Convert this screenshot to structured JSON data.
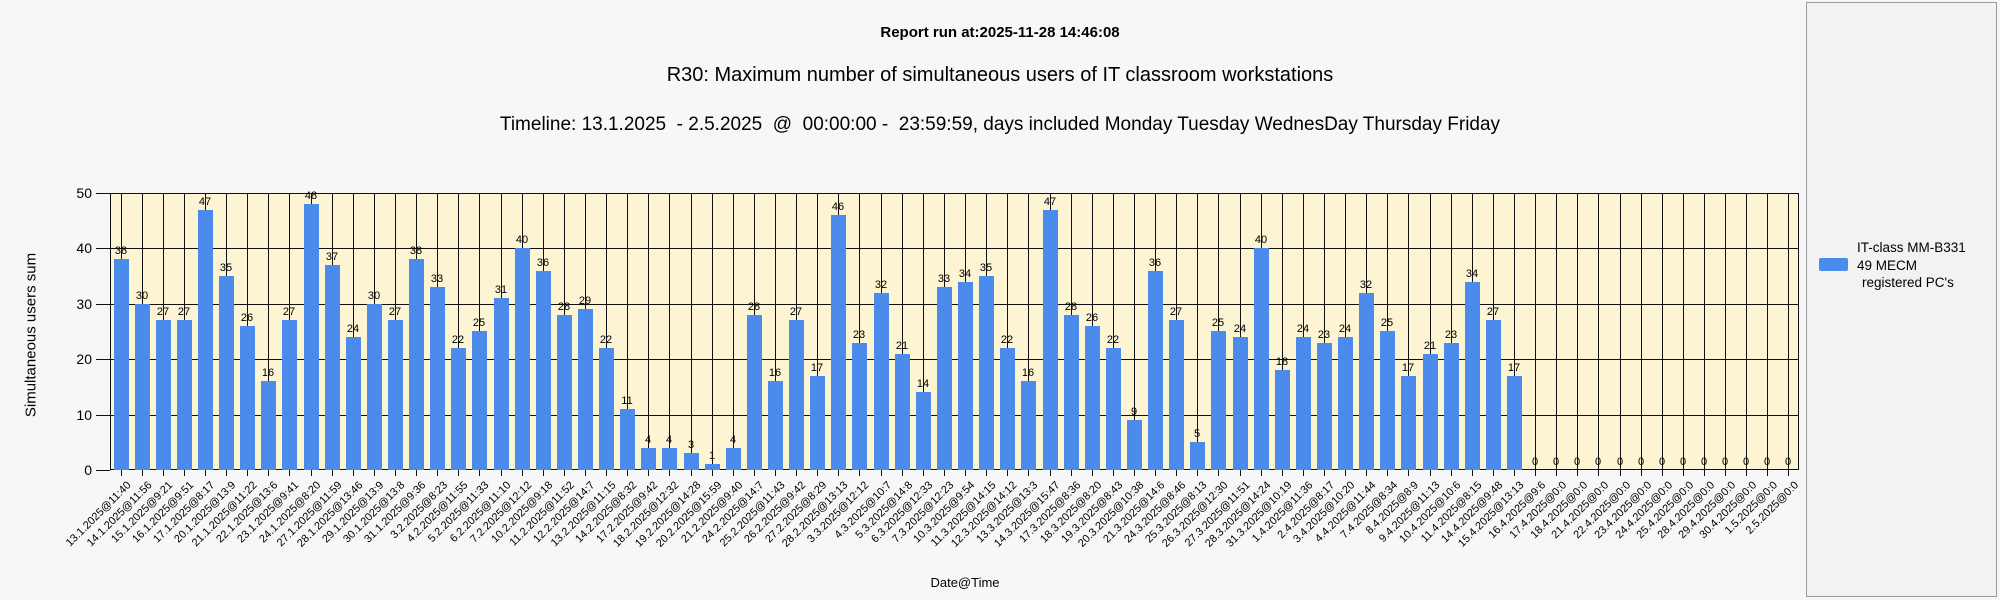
{
  "header": {
    "report_run": "Report run at:2025-11-28 14:46:08",
    "title": "R30: Maximum number of simultaneous users of IT classroom workstations",
    "timeline": "Timeline: 13.1.2025  - 2.5.2025  @  00:00:00 -  23:59:59, days included Monday Tuesday WednesDay Thursday Friday"
  },
  "legend": {
    "lines": [
      "IT-class MM-B331",
      "49 MECM",
      "registered PC's"
    ],
    "swatch_color": "#4a8bec"
  },
  "colors": {
    "bar": "#4a8bec",
    "plot_background": "#fcf4d3",
    "page_background": "#f7f7f9",
    "gridline": "#111111",
    "legend_background": "#f2f2f2"
  },
  "chart_data": {
    "type": "bar",
    "title": "R30: Maximum number of simultaneous users of IT classroom workstations",
    "xlabel": "Date@Time",
    "ylabel": "Simultaneous users sum",
    "ylim": [
      0,
      50
    ],
    "yticks": [
      0,
      10,
      20,
      30,
      40,
      50
    ],
    "grid": true,
    "bar_value_labels": true,
    "legend_position": "right",
    "series_name": "IT-class MM-B331 49 MECM registered PC's",
    "categories": [
      "13.1.2025@11:40",
      "14.1.2025@11:56",
      "15.1.2025@9:21",
      "16.1.2025@9:51",
      "17.1.2025@8:17",
      "20.1.2025@13:9",
      "21.1.2025@11:22",
      "22.1.2025@13:6",
      "23.1.2025@9:41",
      "24.1.2025@8:20",
      "27.1.2025@11:59",
      "28.1.2025@13:46",
      "29.1.2025@13:9",
      "30.1.2025@13:8",
      "31.1.2025@9:36",
      "3.2.2025@8:23",
      "4.2.2025@11:55",
      "5.2.2025@11:33",
      "6.2.2025@11:10",
      "7.2.2025@12:12",
      "10.2.2025@9:18",
      "11.2.2025@11:52",
      "12.2.2025@14:7",
      "13.2.2025@11:15",
      "14.2.2025@8:32",
      "17.2.2025@9:42",
      "18.2.2025@12:32",
      "19.2.2025@14:28",
      "20.2.2025@15:59",
      "21.2.2025@9:40",
      "24.2.2025@14:7",
      "25.2.2025@11:43",
      "26.2.2025@9:42",
      "27.2.2025@8:29",
      "28.2.2025@13:13",
      "3.3.2025@12:12",
      "4.3.2025@10:7",
      "5.3.2025@14:8",
      "6.3.2025@12:33",
      "7.3.2025@12:23",
      "10.3.2025@9:54",
      "11.3.2025@14:15",
      "12.3.2025@14:12",
      "13.3.2025@13:3",
      "14.3.2025@15:47",
      "17.3.2025@8:36",
      "18.3.2025@8:20",
      "19.3.2025@8:43",
      "20.3.2025@10:38",
      "21.3.2025@14:6",
      "24.3.2025@8:46",
      "25.3.2025@8:13",
      "26.3.2025@12:30",
      "27.3.2025@11:51",
      "28.3.2025@14:24",
      "31.3.2025@10:19",
      "1.4.2025@11:36",
      "2.4.2025@8:17",
      "3.4.2025@10:20",
      "4.4.2025@11:44",
      "7.4.2025@8:34",
      "8.4.2025@8:9",
      "9.4.2025@11:13",
      "10.4.2025@10:6",
      "11.4.2025@8:15",
      "14.4.2025@9:48",
      "15.4.2025@13:13",
      "16.4.2025@9:6",
      "17.4.2025@0:0",
      "18.4.2025@0:0",
      "21.4.2025@0:0",
      "22.4.2025@0:0",
      "23.4.2025@0:0",
      "24.4.2025@0:0",
      "25.4.2025@0:0",
      "28.4.2025@0:0",
      "29.4.2025@0:0",
      "30.4.2025@0:0",
      "1.5.2025@0:0",
      "2.5.2025@0:0"
    ],
    "values": [
      38,
      30,
      27,
      27,
      47,
      35,
      26,
      16,
      27,
      48,
      37,
      24,
      30,
      27,
      38,
      33,
      22,
      25,
      31,
      40,
      36,
      28,
      29,
      22,
      11,
      4,
      4,
      3,
      1,
      4,
      28,
      16,
      27,
      17,
      46,
      23,
      32,
      21,
      14,
      33,
      34,
      35,
      22,
      16,
      47,
      28,
      26,
      22,
      9,
      36,
      27,
      5,
      25,
      24,
      40,
      18,
      24,
      23,
      24,
      32,
      25,
      17,
      21,
      23,
      34,
      27,
      17,
      0,
      0,
      0,
      0,
      0,
      0,
      0,
      0,
      0,
      0,
      0,
      0,
      0
    ]
  }
}
